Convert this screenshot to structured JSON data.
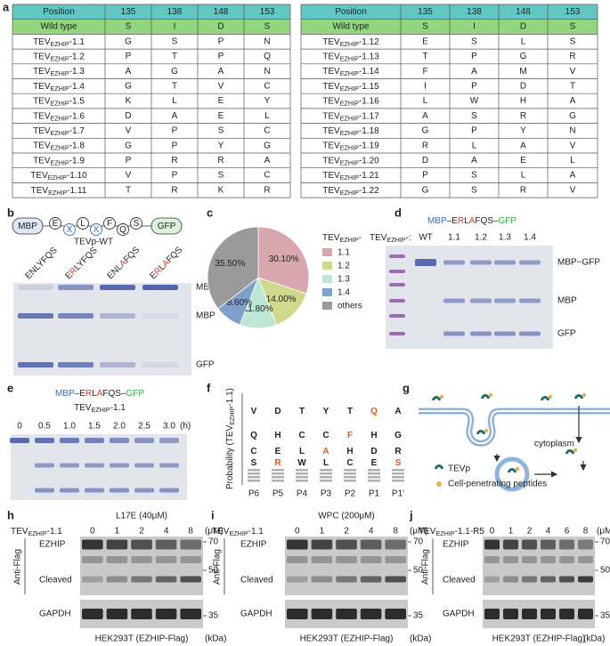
{
  "panel_labels": [
    "a",
    "b",
    "c",
    "d",
    "e",
    "f",
    "g",
    "h",
    "i",
    "j"
  ],
  "table": {
    "columns": [
      "Position",
      "135",
      "138",
      "148",
      "153"
    ],
    "wild_type": [
      "Wild type",
      "S",
      "I",
      "D",
      "S"
    ],
    "label_prefix": "TEV",
    "label_sub": "EZHIP",
    "left": [
      {
        "id": "-1.1",
        "cells": [
          "G",
          "S",
          "P",
          "N"
        ],
        "color": "#c8442c"
      },
      {
        "id": "-1.2",
        "cells": [
          "P",
          "T",
          "P",
          "Q"
        ],
        "color": "#c8442c"
      },
      {
        "id": "-1.3",
        "cells": [
          "A",
          "G",
          "A",
          "N"
        ],
        "color": "#c8442c"
      },
      {
        "id": "-1.4",
        "cells": [
          "G",
          "T",
          "V",
          "C"
        ],
        "color": "#c8442c"
      },
      {
        "id": "-1.5",
        "cells": [
          "K",
          "L",
          "E",
          "Y"
        ]
      },
      {
        "id": "-1.6",
        "cells": [
          "D",
          "A",
          "E",
          "L"
        ]
      },
      {
        "id": "-1.7",
        "cells": [
          "V",
          "P",
          "S",
          "C"
        ]
      },
      {
        "id": "-1.8",
        "cells": [
          "G",
          "P",
          "Y",
          "G"
        ]
      },
      {
        "id": "-1.9",
        "cells": [
          "P",
          "R",
          "R",
          "A"
        ]
      },
      {
        "id": "-1.10",
        "cells": [
          "V",
          "P",
          "S",
          "C"
        ]
      },
      {
        "id": "-1.11",
        "cells": [
          "T",
          "R",
          "K",
          "R"
        ]
      }
    ],
    "right": [
      {
        "id": "-1.12",
        "cells": [
          "E",
          "S",
          "L",
          "S"
        ]
      },
      {
        "id": "-1.13",
        "cells": [
          "T",
          "P",
          "G",
          "R"
        ]
      },
      {
        "id": "-1.14",
        "cells": [
          "F",
          "A",
          "M",
          "V"
        ]
      },
      {
        "id": "-1.15",
        "cells": [
          "I",
          "P",
          "D",
          "T"
        ]
      },
      {
        "id": "-1.16",
        "cells": [
          "L",
          "W",
          "H",
          "A"
        ]
      },
      {
        "id": "-1.17",
        "cells": [
          "A",
          "S",
          "R",
          "G"
        ]
      },
      {
        "id": "-1.18",
        "cells": [
          "G",
          "P",
          "Y",
          "N"
        ]
      },
      {
        "id": "-1.19",
        "cells": [
          "R",
          "L",
          "A",
          "V"
        ]
      },
      {
        "id": "-1.20",
        "cells": [
          "D",
          "A",
          "E",
          "L"
        ]
      },
      {
        "id": "-1.21",
        "cells": [
          "P",
          "S",
          "L",
          "A"
        ]
      },
      {
        "id": "-1.22",
        "cells": [
          "G",
          "S",
          "R",
          "V"
        ]
      }
    ]
  },
  "panel_b": {
    "construct": [
      {
        "t": "MBP"
      },
      {
        "t": "E"
      },
      {
        "t": "X",
        "color": "#3a6cc8"
      },
      {
        "t": "L"
      },
      {
        "t": "X",
        "color": "#3a6cc8"
      },
      {
        "t": "F"
      },
      {
        "t": "Q"
      },
      {
        "t": "S"
      },
      {
        "t": "GFP"
      }
    ],
    "enzyme": "TEVp-WT",
    "lanes": [
      [
        {
          "t": "ENLYFQS"
        }
      ],
      [
        {
          "t": "E"
        },
        {
          "t": "R",
          "color": "#d9401e"
        },
        {
          "t": "LYFQS"
        }
      ],
      [
        {
          "t": "ENL"
        },
        {
          "t": "A",
          "color": "#d9401e"
        },
        {
          "t": "FQS"
        }
      ],
      [
        {
          "t": "E"
        },
        {
          "t": "R",
          "color": "#d9401e"
        },
        {
          "t": "L"
        },
        {
          "t": "A",
          "color": "#d9401e"
        },
        {
          "t": "FQS"
        }
      ]
    ],
    "bands": [
      "MBP-GFP",
      "MBP",
      "GFP"
    ]
  },
  "chart_data": {
    "type": "pie",
    "legend_title": [
      {
        "t": "TEV"
      },
      {
        "t": "EZHIP",
        "sub": true
      },
      {
        "t": "-"
      }
    ],
    "categories": [
      "1.1",
      "1.2",
      "1.3",
      "1.4",
      "others"
    ],
    "values": [
      30.1,
      14.0,
      11.8,
      8.6,
      35.5
    ],
    "value_labels": [
      "30.10%",
      "14.00%",
      "11.80%",
      "8.60%",
      "35.50%"
    ],
    "colors": [
      "#d8a7ad",
      "#cfd98c",
      "#bde6d6",
      "#7f9fcc",
      "#9a9a9a"
    ]
  },
  "panel_d": {
    "title": [
      {
        "t": "MBP",
        "color": "#3a6cc8"
      },
      {
        "t": "–E"
      },
      {
        "t": "R",
        "color": "#d9401e"
      },
      {
        "t": "L"
      },
      {
        "t": "A",
        "color": "#d9401e"
      },
      {
        "t": "FQS–"
      },
      {
        "t": "GFP",
        "color": "#3aa845"
      }
    ],
    "enzyme": [
      {
        "t": "TEV"
      },
      {
        "t": "EZHIP",
        "sub": true
      },
      {
        "t": "-:"
      }
    ],
    "lanes": [
      "WT",
      "1.1",
      "1.2",
      "1.3",
      "1.4"
    ],
    "bands": [
      "MBP−GFP",
      "MBP",
      "GFP"
    ]
  },
  "panel_e": {
    "title": [
      {
        "t": "MBP",
        "color": "#3a6cc8"
      },
      {
        "t": "–E"
      },
      {
        "t": "R",
        "color": "#d9401e"
      },
      {
        "t": "L"
      },
      {
        "t": "A",
        "color": "#d9401e"
      },
      {
        "t": "FQS–"
      },
      {
        "t": "GFP",
        "color": "#3aa845"
      }
    ],
    "enzyme": [
      {
        "t": "TEV"
      },
      {
        "t": "EZHIP",
        "sub": true
      },
      {
        "t": "-1.1"
      }
    ],
    "times": [
      "0",
      "0.5",
      "1.0",
      "1.5",
      "2.0",
      "2.5",
      "3.0"
    ],
    "unit": "(h)"
  },
  "panel_f": {
    "y_label": [
      {
        "t": "Probability (TEV"
      },
      {
        "t": "EZHIP",
        "sub": true
      },
      {
        "t": "-1.1)"
      }
    ],
    "positions": [
      "P6",
      "P5",
      "P4",
      "P3",
      "P2",
      "P1",
      "P1'"
    ],
    "rows": [
      [
        "V",
        "D",
        "T",
        "Y",
        "T",
        {
          "t": "Q",
          "color": "#e0561c"
        },
        "A"
      ],
      [
        "Q",
        "H",
        "C",
        "C",
        {
          "t": "F",
          "color": "#e0561c"
        },
        "H",
        "G"
      ],
      [
        "C",
        "E",
        "L",
        {
          "t": "A",
          "color": "#e0561c"
        },
        "H",
        "D",
        "R"
      ],
      [
        "S",
        {
          "t": "R",
          "color": "#e0561c"
        },
        "W",
        "L",
        "C",
        "E",
        {
          "t": "S",
          "color": "#e0561c"
        }
      ]
    ]
  },
  "panel_g": {
    "compartment": "cytoplasm",
    "legend": [
      "TEVp",
      "Cell-penetrating peptides"
    ]
  },
  "blots": [
    {
      "condition": "L17E (40μM)",
      "enzyme": [
        {
          "t": "TEV"
        },
        {
          "t": "EZHIP",
          "sub": true
        },
        {
          "t": "-1.1"
        }
      ],
      "doses": [
        "0",
        "1",
        "2",
        "4",
        "8"
      ],
      "unit": "(μM)",
      "antibody": "Anti-Flag",
      "bands": [
        "EZHIP",
        "Cleaved",
        "GAPDH"
      ],
      "markers": [
        "70",
        "50",
        "35"
      ],
      "cell": "HEK293T (EZHIP-Flag)",
      "kda": "(kDa)"
    },
    {
      "condition": "WPC (200μM)",
      "enzyme": [
        {
          "t": "TEV"
        },
        {
          "t": "EZHIP",
          "sub": true
        },
        {
          "t": "-1.1"
        }
      ],
      "doses": [
        "0",
        "1",
        "2",
        "4",
        "8"
      ],
      "unit": "(μM)",
      "antibody": "Anti-Flag",
      "bands": [
        "EZHIP",
        "Cleaved",
        "GAPDH"
      ],
      "markers": [
        "70",
        "50",
        "35"
      ],
      "cell": "HEK293T (EZHIP-Flag)",
      "kda": "(kDa)"
    },
    {
      "enzyme": [
        {
          "t": "TEV"
        },
        {
          "t": "EZHIP",
          "sub": true
        },
        {
          "t": "-1.1-R5"
        }
      ],
      "doses": [
        "0",
        "1",
        "2",
        "4",
        "6",
        "8"
      ],
      "unit": "(μM)",
      "antibody": "Anti-Flag",
      "bands": [
        "EZHIP",
        "Cleaved",
        "GAPDH"
      ],
      "markers": [
        "70",
        "50",
        "35"
      ],
      "cell": "HEK293T (EZHIP-Flag)",
      "kda": "(kDa)"
    }
  ]
}
